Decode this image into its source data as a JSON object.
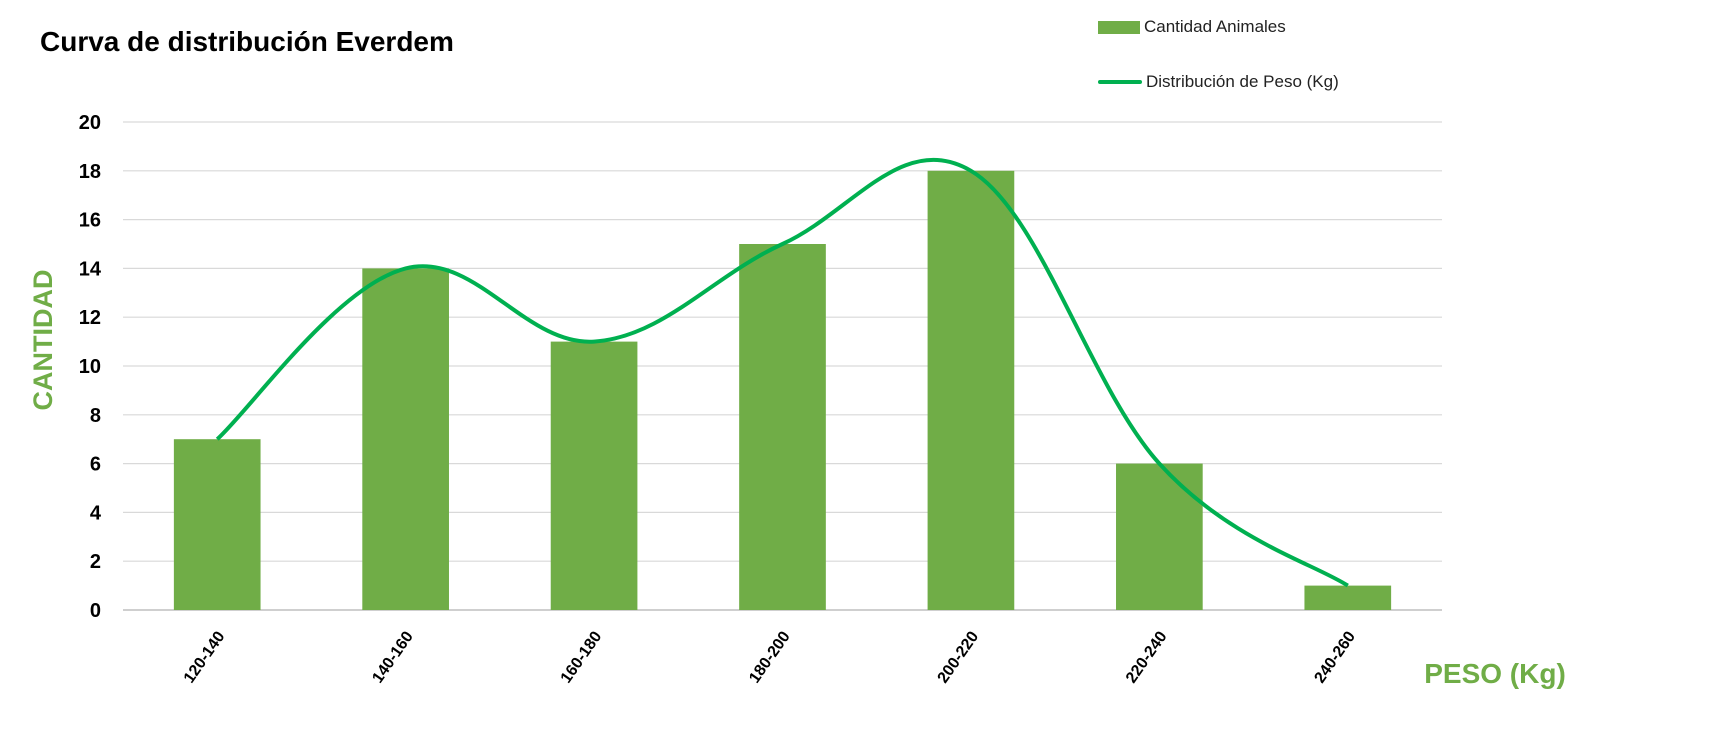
{
  "colors": {
    "bar": "#70ad47",
    "line": "#00b050",
    "axis_title": "#70ad47",
    "grid": "#d9d9d9"
  },
  "legend": {
    "bar_label": "Cantidad Animales",
    "line_label": "Distribución de Peso (Kg)"
  },
  "chart_data": {
    "type": "bar",
    "title": "Curva de distribución Everdem",
    "xlabel": "PESO (Kg)",
    "ylabel": "CANTIDAD",
    "categories": [
      "120-140",
      "140-160",
      "160-180",
      "180-200",
      "200-220",
      "220-240",
      "240-260"
    ],
    "ylim": [
      0,
      20
    ],
    "yticks": [
      0,
      2,
      4,
      6,
      8,
      10,
      12,
      14,
      16,
      18,
      20
    ],
    "grid": true,
    "legend_position": "top-right",
    "series": [
      {
        "name": "Cantidad Animales",
        "type": "bar",
        "values": [
          7,
          14,
          11,
          15,
          18,
          6,
          1
        ]
      },
      {
        "name": "Distribución de Peso (Kg)",
        "type": "line",
        "smooth": true,
        "values": [
          7,
          14,
          11,
          15,
          18,
          6,
          1
        ]
      }
    ]
  }
}
